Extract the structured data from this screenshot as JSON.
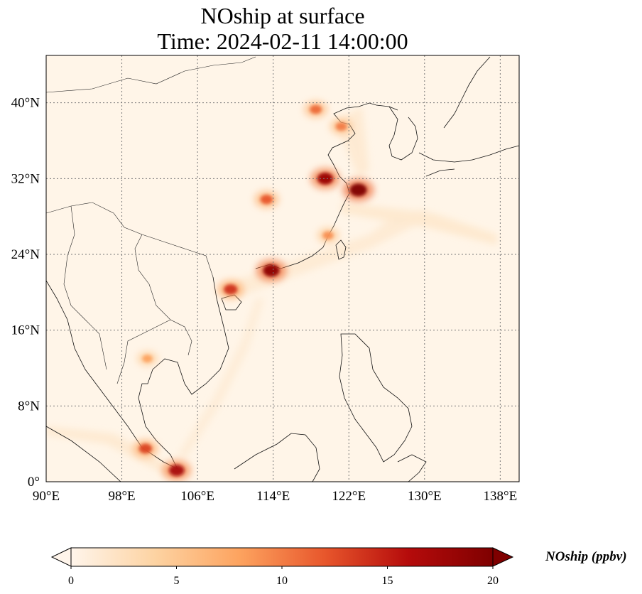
{
  "title": {
    "line1": "NOship at surface",
    "line2": "Time: 2024-02-11 14:00:00"
  },
  "map": {
    "lon_range": [
      90,
      140
    ],
    "lat_range": [
      0,
      45
    ],
    "lon_ticks": [
      {
        "value": 90,
        "label": "90°E"
      },
      {
        "value": 98,
        "label": "98°E"
      },
      {
        "value": 106,
        "label": "106°E"
      },
      {
        "value": 114,
        "label": "114°E"
      },
      {
        "value": 122,
        "label": "122°E"
      },
      {
        "value": 130,
        "label": "130°E"
      },
      {
        "value": 138,
        "label": "138°E"
      }
    ],
    "lat_ticks": [
      {
        "value": 0,
        "label": "0°"
      },
      {
        "value": 8,
        "label": "8°N"
      },
      {
        "value": 16,
        "label": "16°N"
      },
      {
        "value": 24,
        "label": "24°N"
      },
      {
        "value": 32,
        "label": "32°N"
      },
      {
        "value": 40,
        "label": "40°N"
      }
    ],
    "grid": true,
    "background_color": "#fff5e8"
  },
  "colorbar": {
    "label": "NOship (ppbv)",
    "range": [
      0,
      20
    ],
    "extend": "both",
    "colormap": [
      "#fff5eb",
      "#fdd3a2",
      "#fda35f",
      "#e8572c",
      "#b50b0b",
      "#7f0000"
    ],
    "ticks": [
      {
        "value": 0,
        "label": "0"
      },
      {
        "value": 5,
        "label": "5"
      },
      {
        "value": 10,
        "label": "10"
      },
      {
        "value": 15,
        "label": "15"
      },
      {
        "value": 20,
        "label": "20"
      }
    ]
  },
  "hotspots": [
    {
      "name": "shanghai-yangtze",
      "lon": 123.0,
      "lat": 30.8,
      "value": 20
    },
    {
      "name": "yangtze-river",
      "lon": 119.5,
      "lat": 32.0,
      "value": 18
    },
    {
      "name": "bohai-bay",
      "lon": 118.5,
      "lat": 39.3,
      "value": 11
    },
    {
      "name": "shandong-coast",
      "lon": 121.2,
      "lat": 37.5,
      "value": 10
    },
    {
      "name": "pearl-river-delta",
      "lon": 113.8,
      "lat": 22.3,
      "value": 19
    },
    {
      "name": "beibu-gulf",
      "lon": 109.5,
      "lat": 20.3,
      "value": 14
    },
    {
      "name": "zhejiang-fujian-coast",
      "lon": 119.8,
      "lat": 26.0,
      "value": 9
    },
    {
      "name": "inland-yangtze",
      "lon": 113.3,
      "lat": 29.8,
      "value": 12
    },
    {
      "name": "malacca-strait",
      "lon": 100.5,
      "lat": 3.5,
      "value": 13
    },
    {
      "name": "singapore",
      "lon": 103.8,
      "lat": 1.2,
      "value": 17
    },
    {
      "name": "bangkok",
      "lon": 100.7,
      "lat": 13.0,
      "value": 8
    }
  ]
}
